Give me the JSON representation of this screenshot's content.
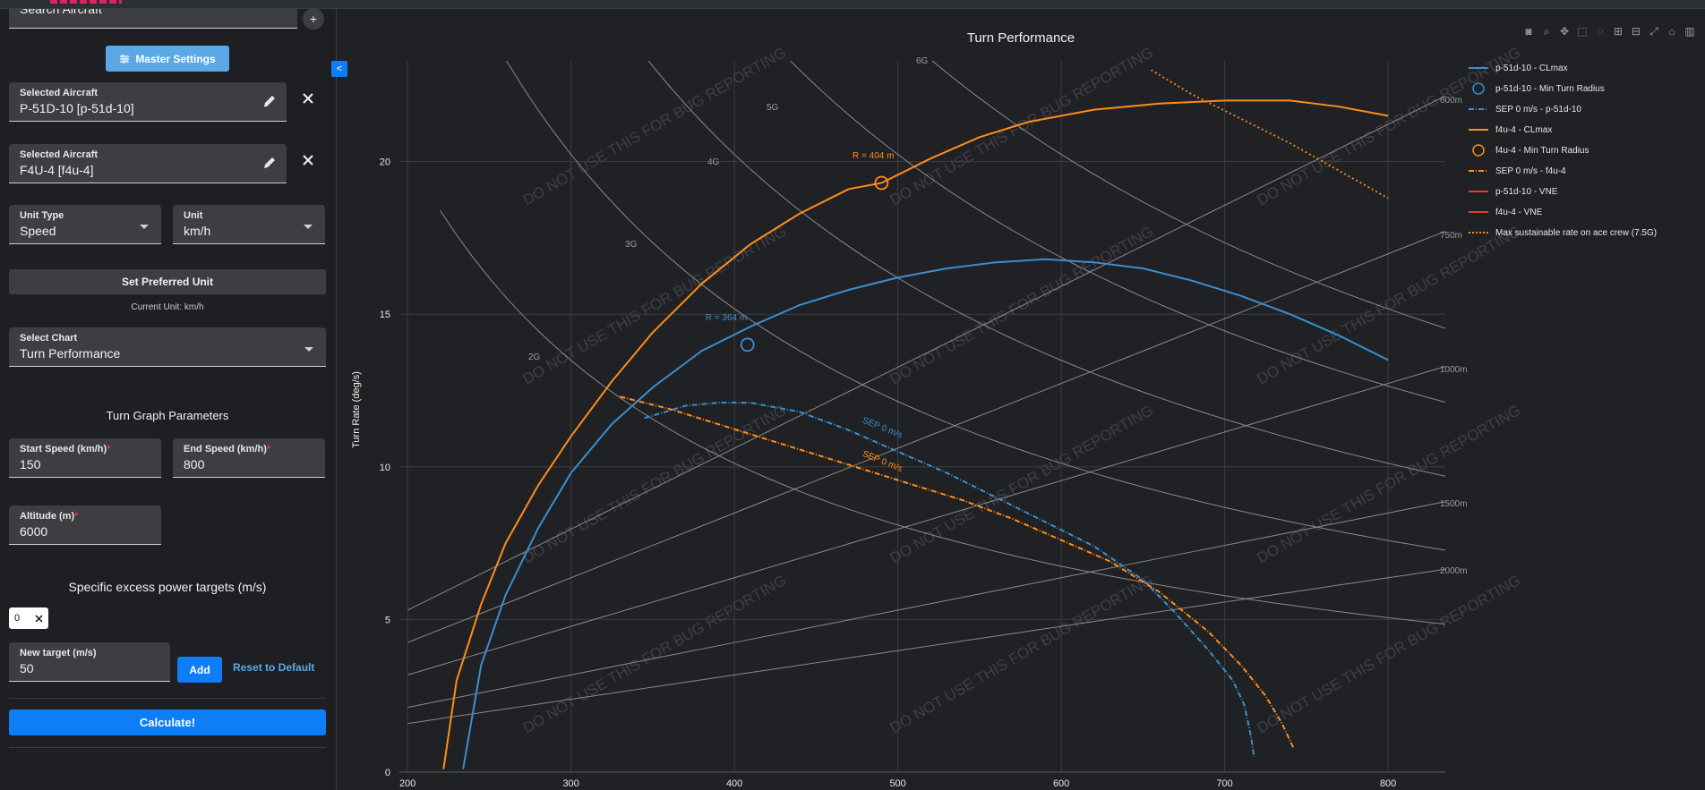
{
  "sidebar": {
    "search_placeholder": "Search Aircraft",
    "add_icon": "+",
    "master_settings_label": "Master Settings",
    "aircraft": [
      {
        "label": "Selected Aircraft",
        "value": "P-51D-10 [p-51d-10]"
      },
      {
        "label": "Selected Aircraft",
        "value": "F4U-4 [f4u-4]"
      }
    ],
    "unit_type": {
      "label": "Unit Type",
      "value": "Speed"
    },
    "unit": {
      "label": "Unit",
      "value": "km/h"
    },
    "set_preferred_label": "Set Preferred Unit",
    "current_unit_text": "Current Unit: km/h",
    "select_chart": {
      "label": "Select Chart",
      "value": "Turn Performance"
    },
    "turn_params_title": "Turn Graph Parameters",
    "start_speed": {
      "label": "Start Speed (km/h)",
      "value": "150"
    },
    "end_speed": {
      "label": "End Speed (km/h)",
      "value": "800"
    },
    "altitude": {
      "label": "Altitude (m)",
      "value": "6000"
    },
    "sep_title": "Specific excess power targets (m/s)",
    "sep_chip": "0",
    "new_target": {
      "label": "New target (m/s)",
      "value": "50"
    },
    "add_label": "Add",
    "reset_label": "Reset to Default",
    "calculate_label": "Calculate!",
    "req_mark": "*",
    "collapse_icon": "<"
  },
  "modebar_icons": [
    "camera-icon",
    "zoom-icon",
    "pan-icon",
    "box-select-icon",
    "lasso-icon",
    "zoom-in-icon",
    "zoom-out-icon",
    "autoscale-icon",
    "reset-axes-icon",
    "plotly-logo-icon"
  ],
  "watermark": "DO NOT USE THIS FOR BUG REPORTING",
  "chart_data": {
    "type": "line",
    "title": "Turn Performance",
    "xlabel": "",
    "ylabel": "Turn Rate (deg/s)",
    "xlim": [
      195,
      835
    ],
    "ylim": [
      0,
      23.3
    ],
    "x_ticks": [
      200,
      300,
      400,
      500,
      600,
      700,
      800
    ],
    "y_ticks": [
      0,
      5,
      10,
      15,
      20
    ],
    "grid": true,
    "legend_position": "right",
    "colors": {
      "p51": "#3a8fd0",
      "f4u": "#ff8c1a",
      "vne_p51": "#e53935",
      "vne_f4u": "#e53935",
      "ace": "#ff8c1a",
      "grid": "#3a3d42",
      "ref": "#8a8a8a"
    },
    "g_lines": [
      {
        "label": "2G",
        "g": 2
      },
      {
        "label": "3G",
        "g": 3
      },
      {
        "label": "4G",
        "g": 4
      },
      {
        "label": "5G",
        "g": 5
      },
      {
        "label": "6G",
        "g": 6
      }
    ],
    "radius_lines": [
      {
        "label": "600m",
        "r": 600
      },
      {
        "label": "750m",
        "r": 750
      },
      {
        "label": "1000m",
        "r": 1000
      },
      {
        "label": "1500m",
        "r": 1500
      },
      {
        "label": "2000m",
        "r": 2000
      }
    ],
    "series": [
      {
        "name": "p-51d-10 - CLmax",
        "x": [
          234,
          245,
          260,
          280,
          300,
          325,
          350,
          380,
          410,
          440,
          470,
          500,
          530,
          560,
          590,
          620,
          650,
          680,
          710,
          740,
          770,
          800
        ],
        "y": [
          0.1,
          3.5,
          5.8,
          8.0,
          9.8,
          11.4,
          12.6,
          13.8,
          14.6,
          15.3,
          15.8,
          16.2,
          16.5,
          16.7,
          16.8,
          16.7,
          16.5,
          16.1,
          15.6,
          15.0,
          14.3,
          13.5
        ]
      },
      {
        "name": "p-51d-10 - Min Turn Radius",
        "x": [
          408
        ],
        "y": [
          14.0
        ]
      },
      {
        "name": "SEP 0 m/s - p-51d-10",
        "x": [
          345,
          370,
          390,
          410,
          440,
          470,
          500,
          530,
          560,
          590,
          620,
          650,
          670,
          690,
          705,
          712,
          716,
          718
        ],
        "y": [
          11.6,
          12.0,
          12.1,
          12.1,
          11.8,
          11.2,
          10.5,
          9.8,
          9.0,
          8.2,
          7.4,
          6.3,
          5.2,
          4.0,
          3.0,
          2.2,
          1.2,
          0.5
        ]
      },
      {
        "name": "f4u-4 - CLmax",
        "x": [
          222,
          230,
          245,
          260,
          280,
          300,
          325,
          350,
          380,
          410,
          440,
          470,
          490,
          520,
          550,
          580,
          620,
          660,
          700,
          740,
          770,
          800
        ],
        "y": [
          0.1,
          3.0,
          5.5,
          7.5,
          9.4,
          11.0,
          12.8,
          14.4,
          16.0,
          17.3,
          18.3,
          19.1,
          19.3,
          20.1,
          20.8,
          21.3,
          21.7,
          21.9,
          22.0,
          22.0,
          21.8,
          21.5
        ]
      },
      {
        "name": "f4u-4 - Min Turn Radius",
        "x": [
          490
        ],
        "y": [
          19.3
        ]
      },
      {
        "name": "SEP 0 m/s - f4u-4",
        "x": [
          330,
          360,
          390,
          420,
          450,
          480,
          510,
          540,
          570,
          600,
          630,
          660,
          690,
          710,
          725,
          735,
          742
        ],
        "y": [
          12.3,
          11.9,
          11.4,
          10.9,
          10.4,
          9.9,
          9.4,
          8.9,
          8.3,
          7.6,
          6.9,
          5.9,
          4.6,
          3.5,
          2.5,
          1.6,
          0.8
        ]
      },
      {
        "name": "p-51d-10 - VNE",
        "x": [],
        "y": []
      },
      {
        "name": "f4u-4 - VNE",
        "x": [],
        "y": []
      },
      {
        "name": "Max sustainable rate on ace crew (7.5G)",
        "x": [
          655,
          680,
          710,
          740,
          770,
          800
        ],
        "y": [
          23.0,
          22.2,
          21.4,
          20.6,
          19.7,
          18.8
        ]
      }
    ],
    "annotations": [
      {
        "text": "R = 404 m",
        "x": 485,
        "y": 20.1,
        "color": "#ff8c1a"
      },
      {
        "text": "R = 364 m",
        "x": 395,
        "y": 14.8,
        "color": "#3a8fd0"
      },
      {
        "text": "SEP 0 m/s",
        "x": 490,
        "y": 11.2,
        "color": "#3a8fd0"
      },
      {
        "text": "SEP 0 m/s",
        "x": 490,
        "y": 10.1,
        "color": "#ff8c1a"
      }
    ]
  }
}
